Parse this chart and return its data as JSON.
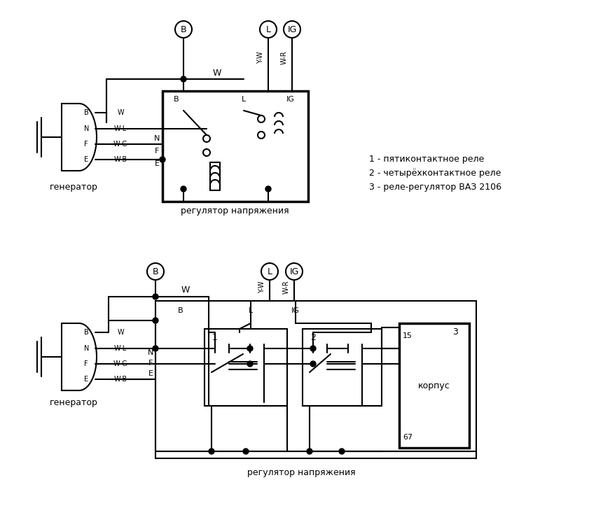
{
  "bg_color": "#ffffff",
  "line_color": "#000000",
  "legend": [
    "1 - пятиконтактное реле",
    "2 - четырёхконтактное реле",
    "3 - реле-регулятор ВАЗ 2106"
  ],
  "figsize": [
    8.51,
    7.46
  ],
  "dpi": 100
}
